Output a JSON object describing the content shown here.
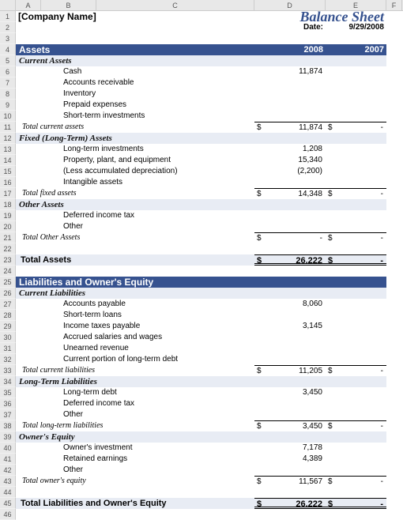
{
  "colHeaders": [
    "A",
    "B",
    "C",
    "D",
    "E",
    "F"
  ],
  "company": "[Company Name]",
  "title": "Balance Sheet",
  "dateLabel": "Date:",
  "dateValue": "9/29/2008",
  "year1": "2008",
  "year2": "2007",
  "colors": {
    "headerBg": "#36528f",
    "subBg": "#e8ecf4"
  },
  "sections": [
    {
      "header": "Assets",
      "showYears": true,
      "groups": [
        {
          "title": "Current Assets",
          "items": [
            {
              "label": "Cash",
              "v1": "11,874",
              "v2": ""
            },
            {
              "label": "Accounts receivable",
              "v1": "",
              "v2": ""
            },
            {
              "label": "Inventory",
              "v1": "",
              "v2": ""
            },
            {
              "label": "Prepaid expenses",
              "v1": "",
              "v2": ""
            },
            {
              "label": "Short-term investments",
              "v1": "",
              "v2": ""
            }
          ],
          "subtotal": {
            "label": "Total current assets",
            "v1": "11,874",
            "v2": "-"
          }
        },
        {
          "title": "Fixed (Long-Term) Assets",
          "items": [
            {
              "label": "Long-term investments",
              "v1": "1,208",
              "v2": ""
            },
            {
              "label": "Property, plant, and equipment",
              "v1": "15,340",
              "v2": ""
            },
            {
              "label": "(Less accumulated depreciation)",
              "v1": "(2,200)",
              "v2": ""
            },
            {
              "label": "Intangible assets",
              "v1": "",
              "v2": ""
            }
          ],
          "subtotal": {
            "label": "Total fixed assets",
            "v1": "14,348",
            "v2": "-"
          }
        },
        {
          "title": "Other Assets",
          "items": [
            {
              "label": "Deferred income tax",
              "v1": "",
              "v2": ""
            },
            {
              "label": "Other",
              "v1": "",
              "v2": ""
            }
          ],
          "subtotal": {
            "label": "Total Other Assets",
            "v1": "-",
            "v2": "-"
          }
        }
      ],
      "total": {
        "label": "Total Assets",
        "v1": "26,222",
        "v2": "-"
      }
    },
    {
      "header": "Liabilities and Owner's Equity",
      "showYears": false,
      "groups": [
        {
          "title": "Current Liabilities",
          "items": [
            {
              "label": "Accounts payable",
              "v1": "8,060",
              "v2": ""
            },
            {
              "label": "Short-term loans",
              "v1": "",
              "v2": ""
            },
            {
              "label": "Income taxes payable",
              "v1": "3,145",
              "v2": ""
            },
            {
              "label": "Accrued salaries and wages",
              "v1": "",
              "v2": ""
            },
            {
              "label": "Unearned revenue",
              "v1": "",
              "v2": ""
            },
            {
              "label": "Current portion of long-term debt",
              "v1": "",
              "v2": ""
            }
          ],
          "subtotal": {
            "label": "Total current liabilities",
            "v1": "11,205",
            "v2": "-"
          }
        },
        {
          "title": "Long-Term Liabilities",
          "items": [
            {
              "label": "Long-term debt",
              "v1": "3,450",
              "v2": ""
            },
            {
              "label": "Deferred income tax",
              "v1": "",
              "v2": ""
            },
            {
              "label": "Other",
              "v1": "",
              "v2": ""
            }
          ],
          "subtotal": {
            "label": "Total long-term liabilities",
            "v1": "3,450",
            "v2": "-"
          }
        },
        {
          "title": "Owner's Equity",
          "items": [
            {
              "label": "Owner's investment",
              "v1": "7,178",
              "v2": ""
            },
            {
              "label": "Retained earnings",
              "v1": "4,389",
              "v2": ""
            },
            {
              "label": "Other",
              "v1": "",
              "v2": ""
            }
          ],
          "subtotal": {
            "label": "Total owner's equity",
            "v1": "11,567",
            "v2": "-"
          }
        }
      ],
      "total": {
        "label": "Total Liabilities and Owner's Equity",
        "v1": "26,222",
        "v2": "-"
      }
    }
  ]
}
